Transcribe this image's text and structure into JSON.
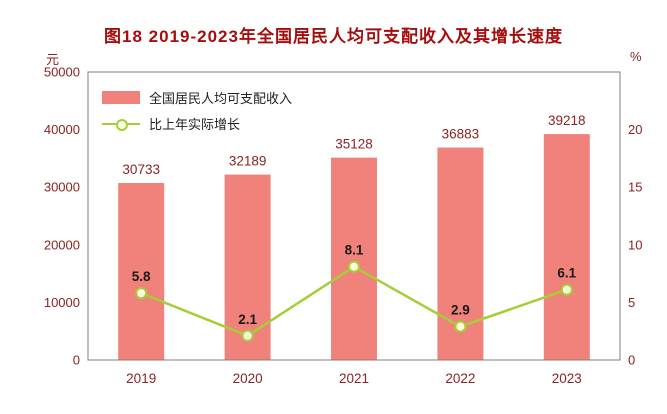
{
  "title": "图18  2019-2023年全国居民人均可支配收入及其增长速度",
  "left_axis_unit": "元",
  "right_axis_unit": "%",
  "legend": [
    {
      "label": "全国居民人均可支配收入",
      "type": "bar",
      "color": "#F0817B"
    },
    {
      "label": "比上年实际增长",
      "type": "line",
      "color": "#A6CE39"
    }
  ],
  "chart_data": {
    "type": "bar+line",
    "title": "图18  2019-2023年全国居民人均可支配收入及其增长速度",
    "categories": [
      "2019",
      "2020",
      "2021",
      "2022",
      "2023"
    ],
    "series": [
      {
        "name": "全国居民人均可支配收入",
        "type": "bar",
        "axis": "left",
        "values": [
          30733,
          32189,
          35128,
          36883,
          39218
        ],
        "color": "#F0817B"
      },
      {
        "name": "比上年实际增长",
        "type": "line",
        "axis": "right",
        "values": [
          5.8,
          2.1,
          8.1,
          2.9,
          6.1
        ],
        "color": "#A6CE39"
      }
    ],
    "left_axis": {
      "unit": "元",
      "min": 0,
      "max": 50000,
      "ticks": [
        0,
        10000,
        20000,
        30000,
        40000,
        50000
      ]
    },
    "right_axis": {
      "unit": "%",
      "min": 0,
      "max": 25,
      "ticks": [
        0,
        5,
        10,
        15,
        20
      ]
    },
    "marker_fill": "#FCFEE1",
    "grid": false,
    "legend_position": "top-left-inside",
    "plot_border_color": "#7f7f7f",
    "text_color": "#8B2323"
  }
}
